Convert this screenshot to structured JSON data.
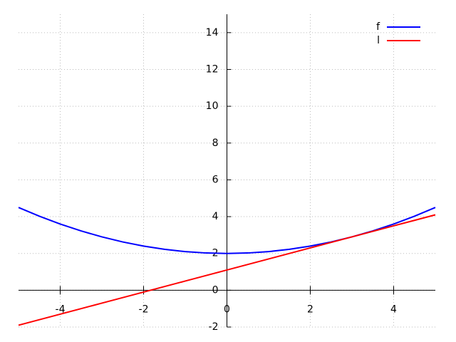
{
  "chart_data": {
    "type": "line",
    "x": [
      -5,
      -4.5,
      -4,
      -3.5,
      -3,
      -2.5,
      -2,
      -1.5,
      -1,
      -0.5,
      0,
      0.5,
      1,
      1.5,
      2,
      2.5,
      3,
      3.5,
      4,
      4.5,
      5
    ],
    "series": [
      {
        "name": "f",
        "color": "#0000ff",
        "values": [
          4.5,
          4.025,
          3.6,
          3.225,
          2.9,
          2.625,
          2.4,
          2.225,
          2.1,
          2.025,
          2,
          2.025,
          2.1,
          2.225,
          2.4,
          2.625,
          2.9,
          3.225,
          3.6,
          4.025,
          4.5
        ]
      },
      {
        "name": "l",
        "color": "#ff0000",
        "values": [
          -1.9,
          -1.6,
          -1.3,
          -1,
          -0.7,
          -0.4,
          -0.1,
          0.2,
          0.5,
          0.8,
          1.1,
          1.4,
          1.7,
          2,
          2.3,
          2.6,
          2.9,
          3.2,
          3.5,
          3.8,
          4.1
        ]
      }
    ],
    "xlim": [
      -5,
      5
    ],
    "ylim": [
      -2,
      15
    ],
    "xticks": [
      -4,
      -2,
      0,
      2,
      4
    ],
    "yticks": [
      -2,
      0,
      2,
      4,
      6,
      8,
      10,
      12,
      14
    ],
    "grid": true,
    "legend": "upper-right"
  }
}
